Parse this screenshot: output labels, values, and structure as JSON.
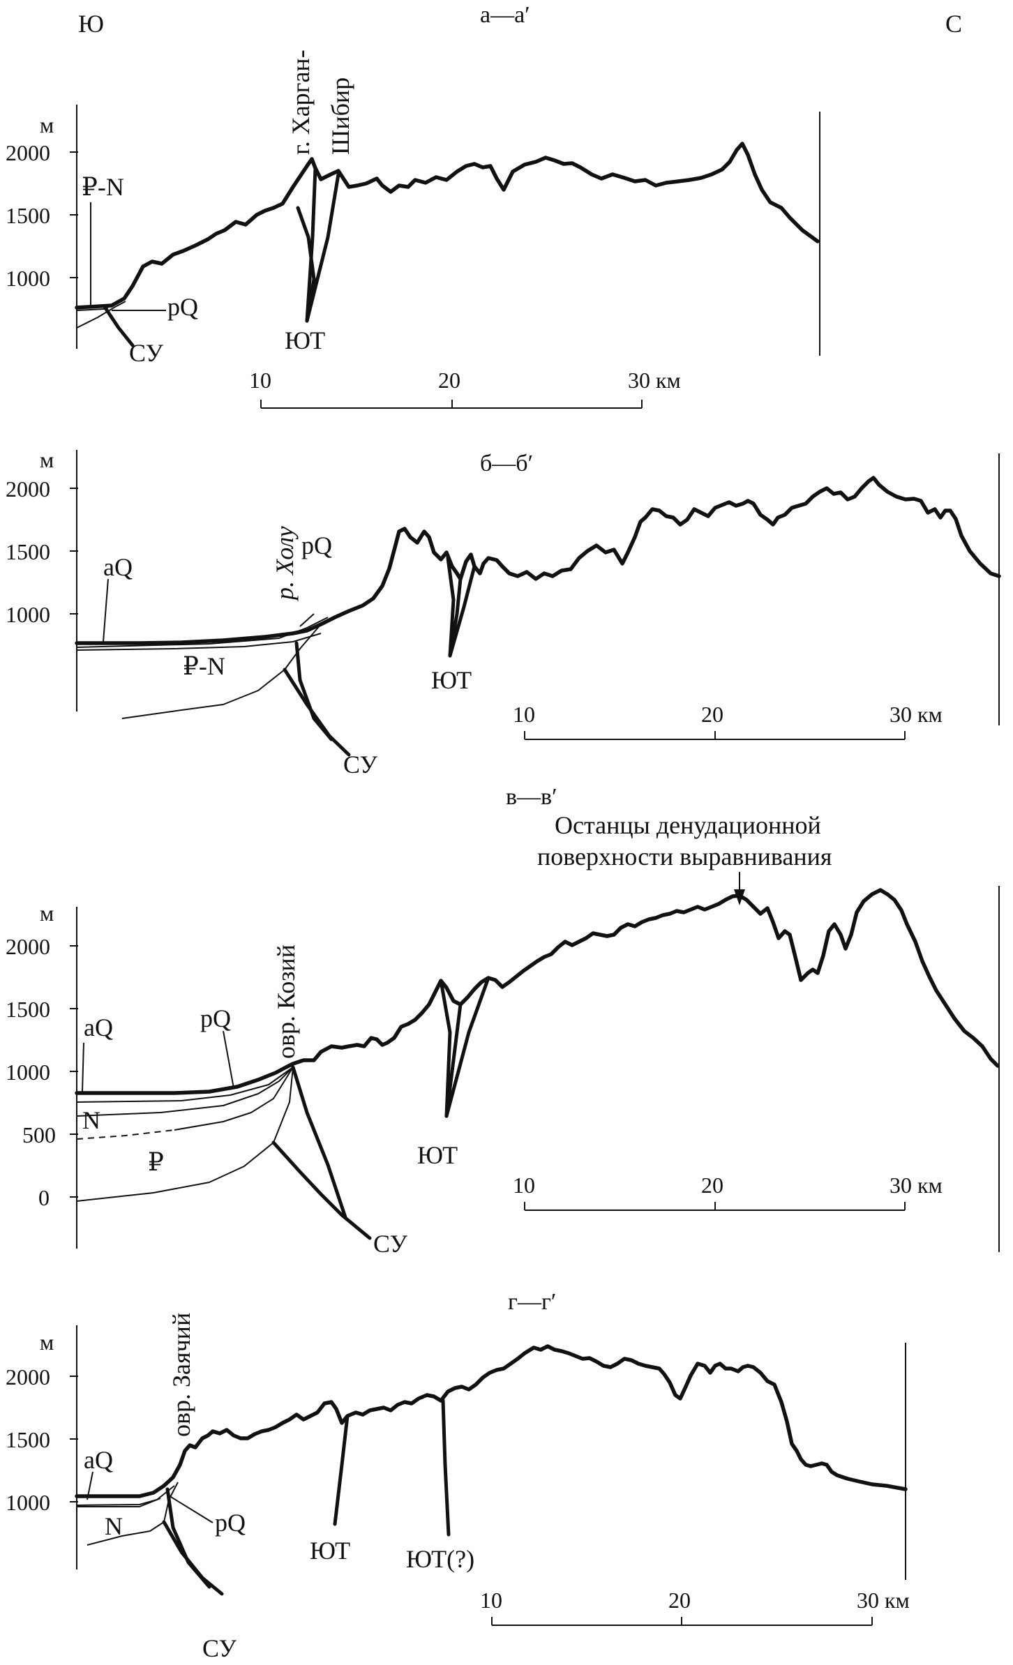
{
  "header": {
    "south": "Ю",
    "north": "С"
  },
  "unit_m": "м",
  "scale_unit": "10",
  "sections": [
    {
      "title": "а—а′",
      "y_ticks": [
        "2000",
        "1500",
        "1000"
      ],
      "scale": [
        "10",
        "20",
        "30 км"
      ],
      "labels": {
        "peak": "г. Харган-",
        "peak2": "Шибир",
        "pn": "₽-N",
        "pq": "pQ",
        "su": "СУ",
        "yut": "ЮТ"
      }
    },
    {
      "title": "б—б′",
      "y_ticks": [
        "2000",
        "1500",
        "1000"
      ],
      "scale": [
        "10",
        "20",
        "30 км"
      ],
      "labels": {
        "river": "р. Холу",
        "pq": "pQ",
        "aq": "aQ",
        "pn": "₽-N",
        "su": "СУ",
        "yut": "ЮТ"
      }
    },
    {
      "title": "в—в′",
      "note1": "Останцы денудационной",
      "note2": "поверхности выравнивания",
      "y_ticks": [
        "2000",
        "1500",
        "1000",
        "500",
        "0"
      ],
      "scale": [
        "10",
        "20",
        "30 км"
      ],
      "labels": {
        "ravine": "овр. Козий",
        "aq": "aQ",
        "pq": "pQ",
        "n": "N",
        "p": "₽",
        "su": "СУ",
        "yut": "ЮТ"
      }
    },
    {
      "title": "г—г′",
      "y_ticks": [
        "2000",
        "1500",
        "1000"
      ],
      "scale": [
        "10",
        "20",
        "30 км"
      ],
      "labels": {
        "ravine": "овр. Заячий",
        "aq": "aQ",
        "pq": "pQ",
        "n": "N",
        "su": "СУ",
        "yut": "ЮТ",
        "yut2": "ЮТ(?)"
      }
    }
  ]
}
